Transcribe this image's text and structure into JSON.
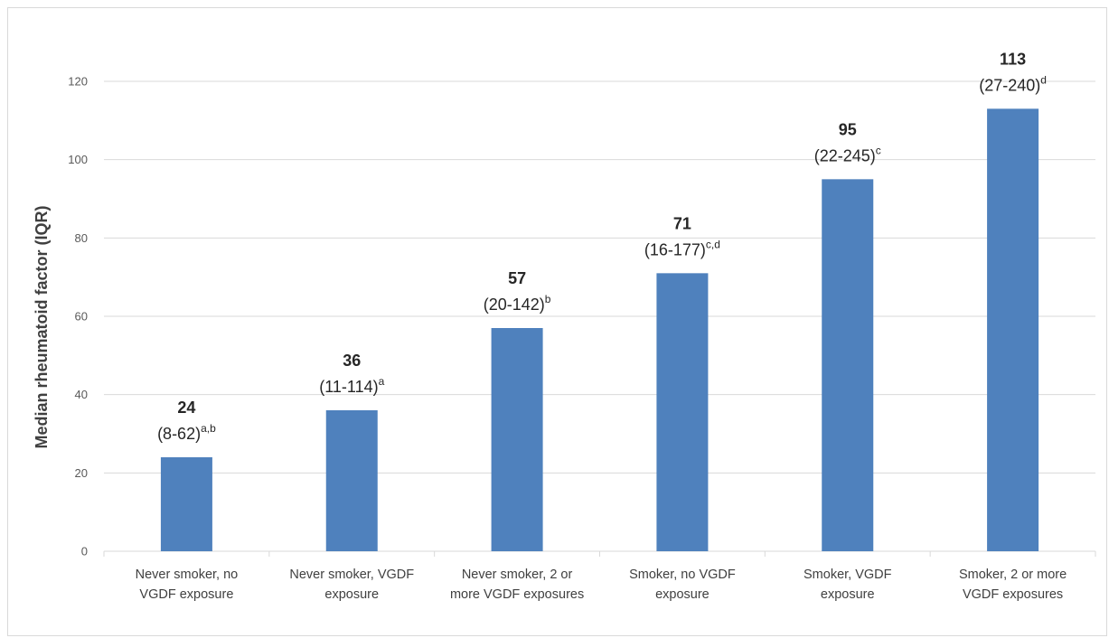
{
  "chart_data": {
    "type": "bar",
    "ylabel": "Median rheumatoid factor (IQR)",
    "ylim": [
      0,
      120
    ],
    "yticks": [
      "0",
      "20",
      "40",
      "60",
      "80",
      "100",
      "120"
    ],
    "grid": "horizontal",
    "categories": [
      [
        "Never smoker, no",
        "VGDF exposure"
      ],
      [
        "Never smoker, VGDF",
        "exposure"
      ],
      [
        "Never smoker, 2 or",
        "more VGDF exposures"
      ],
      [
        "Smoker, no VGDF",
        "exposure"
      ],
      [
        "Smoker, VGDF",
        "exposure"
      ],
      [
        "Smoker, 2 or more",
        "VGDF exposures"
      ]
    ],
    "values": [
      24,
      36,
      57,
      71,
      95,
      113
    ],
    "value_labels": [
      "24",
      "36",
      "57",
      "71",
      "95",
      "113"
    ],
    "iqr_labels": [
      "(8-62)",
      "(11-114)",
      "(20-142)",
      "(16-177)",
      "(22-245)",
      "(27-240)"
    ],
    "superscripts": [
      "a,b",
      "a",
      "b",
      "c,d",
      "c",
      "d"
    ],
    "bar_color": "#4f81bd",
    "grid_color": "#d9d9d9"
  }
}
